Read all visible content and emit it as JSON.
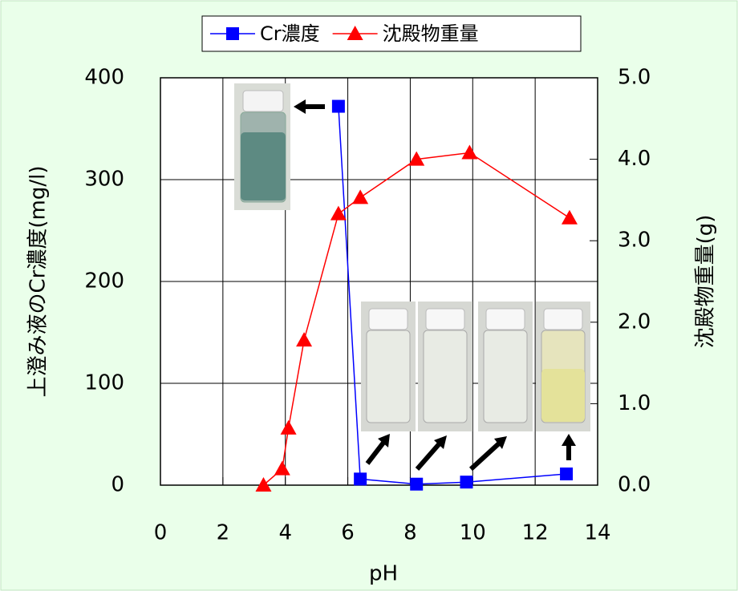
{
  "chart_data": {
    "type": "line",
    "x_label": "pH",
    "y_label": "上澄み液のCr濃度(mg/l)",
    "y2_label": "沈殿物重量(g)",
    "xlim": [
      0,
      14
    ],
    "xticks": [
      0,
      2,
      4,
      6,
      8,
      10,
      12,
      14
    ],
    "ylim": [
      0,
      400
    ],
    "yticks": [
      0,
      100,
      200,
      300,
      400
    ],
    "y2lim": [
      0,
      5
    ],
    "y2ticks": [
      {
        "value": 0,
        "label": "0.0"
      },
      {
        "value": 1,
        "label": "1.0"
      },
      {
        "value": 2,
        "label": "2.0"
      },
      {
        "value": 3,
        "label": "3.0"
      },
      {
        "value": 4,
        "label": "4.0"
      },
      {
        "value": 5,
        "label": "5.0"
      }
    ],
    "grid": true,
    "series": [
      {
        "name": "Cr濃度",
        "color": "#0000ff",
        "marker": "square",
        "x": [
          5.7,
          6.4,
          8.2,
          9.8,
          13.0
        ],
        "values": [
          372,
          6,
          1,
          3,
          11
        ]
      },
      {
        "name": "沈殿物重量",
        "color": "#ff0000",
        "marker": "triangle",
        "axis": "y2",
        "x": [
          3.3,
          3.9,
          4.1,
          4.6,
          5.7,
          6.4,
          8.2,
          9.9,
          13.1
        ],
        "values": [
          0.0,
          0.2,
          0.7,
          1.78,
          3.33,
          3.53,
          4.0,
          4.08,
          3.28
        ]
      }
    ]
  }
}
